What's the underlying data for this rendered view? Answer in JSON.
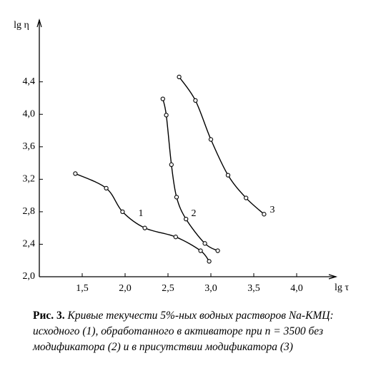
{
  "chart_data": {
    "type": "line",
    "y_label": "lg η",
    "x_label": "lg τ",
    "caption_label": "Рис. 3.",
    "caption": "Кривые текучести 5%-ных водных растворов Na-КМЦ: исходного (1), обработанного в активаторе при n = 3500 без модификатора (2) и в присутствии модификатора (3)",
    "xlim": [
      1.0,
      4.4
    ],
    "ylim": [
      2.0,
      5.1
    ],
    "xticks": [
      {
        "value": 1.5,
        "label": "1,5"
      },
      {
        "value": 2.0,
        "label": "2,0"
      },
      {
        "value": 2.5,
        "label": "2,5"
      },
      {
        "value": 3.0,
        "label": "3,0"
      },
      {
        "value": 3.5,
        "label": "3,5"
      },
      {
        "value": 4.0,
        "label": "4,0"
      }
    ],
    "yticks": [
      {
        "value": 2.0,
        "label": "2,0"
      },
      {
        "value": 2.4,
        "label": "2,4"
      },
      {
        "value": 2.8,
        "label": "2,8"
      },
      {
        "value": 3.2,
        "label": "3,2"
      },
      {
        "value": 3.6,
        "label": "3,6"
      },
      {
        "value": 4.0,
        "label": "4,0"
      },
      {
        "value": 4.4,
        "label": "4,4"
      }
    ],
    "grid": false,
    "series": [
      {
        "name": "1",
        "color": "#000000",
        "x": [
          1.42,
          1.78,
          1.97,
          2.23,
          2.59,
          2.88,
          2.98
        ],
        "values": [
          3.27,
          3.09,
          2.8,
          2.6,
          2.49,
          2.32,
          2.19
        ]
      },
      {
        "name": "2",
        "color": "#000000",
        "x": [
          2.44,
          2.48,
          2.54,
          2.6,
          2.71,
          2.93,
          3.08
        ],
        "values": [
          4.19,
          3.99,
          3.38,
          2.98,
          2.71,
          2.41,
          2.32
        ]
      },
      {
        "name": "3",
        "color": "#000000",
        "x": [
          2.63,
          2.82,
          3.0,
          3.2,
          3.41,
          3.62
        ],
        "values": [
          4.46,
          4.17,
          3.69,
          3.25,
          2.97,
          2.77
        ]
      }
    ]
  }
}
